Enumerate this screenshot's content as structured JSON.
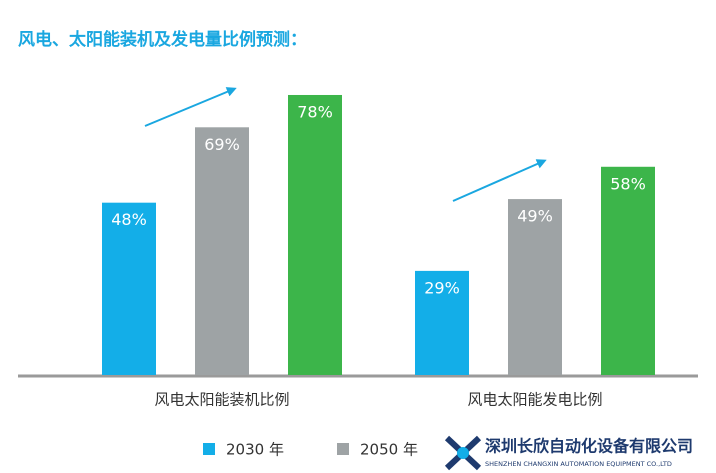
{
  "chart_data": {
    "type": "bar",
    "title": "风电、太阳能装机及发电量比例预测：",
    "categories": [
      "风电太阳能装机比例",
      "风电太阳能发电比例"
    ],
    "series": [
      {
        "name": "2030 年",
        "color": "#13aee8",
        "values": [
          48,
          29
        ],
        "value_labels": [
          "48%",
          "29%"
        ]
      },
      {
        "name": "2050 年",
        "color": "#9ea3a5",
        "values": [
          69,
          49
        ],
        "value_labels": [
          "69%",
          "49%"
        ]
      },
      {
        "color": "#3cb54a",
        "values": [
          78,
          58
        ],
        "value_labels": [
          "78%",
          "58%"
        ]
      }
    ]
  },
  "logo": {
    "name": "深圳长欣自动化设备有限公司",
    "subtitle": "SHENZHEN CHANGXIN AUTOMATION EQUIPMENT CO.,LTD"
  }
}
